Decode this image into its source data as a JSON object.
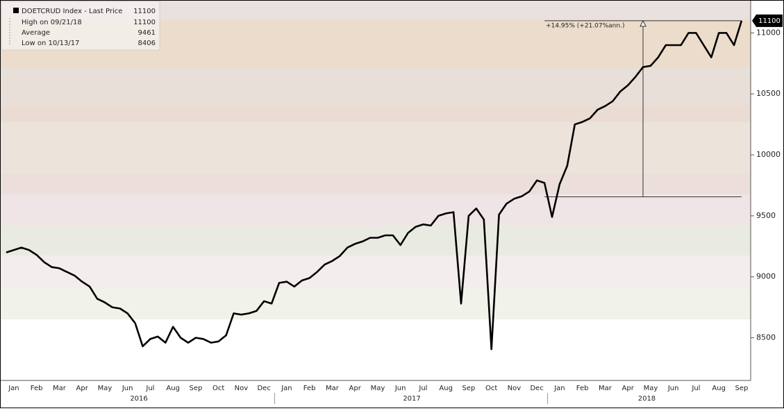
{
  "chart_data": {
    "type": "line",
    "series": [
      {
        "name": "DOETCRUD Index - Last Price",
        "color": "#000000",
        "values": [
          9200,
          9220,
          9240,
          9220,
          9180,
          9120,
          9080,
          9070,
          9040,
          9010,
          8960,
          8920,
          8820,
          8790,
          8750,
          8740,
          8700,
          8620,
          8430,
          8490,
          8510,
          8460,
          8590,
          8500,
          8460,
          8500,
          8490,
          8460,
          8470,
          8520,
          8700,
          8690,
          8700,
          8720,
          8800,
          8780,
          8950,
          8960,
          8920,
          8970,
          8990,
          9040,
          9100,
          9130,
          9170,
          9240,
          9270,
          9290,
          9320,
          9320,
          9340,
          9340,
          9260,
          9360,
          9410,
          9430,
          9420,
          9500,
          9520,
          9530,
          8780,
          9500,
          9560,
          9470,
          8406,
          9510,
          9600,
          9640,
          9660,
          9700,
          9790,
          9770,
          9490,
          9760,
          9910,
          10250,
          10270,
          10300,
          10370,
          10400,
          10440,
          10520,
          10570,
          10640,
          10720,
          10730,
          10800,
          10900,
          10900,
          10900,
          11000,
          11000,
          10900,
          10800,
          11000,
          11000,
          10900,
          11100
        ]
      }
    ],
    "categories": [
      null,
      "Jan",
      null,
      null,
      "Feb",
      null,
      null,
      "Mar",
      null,
      null,
      "Apr",
      null,
      null,
      "May",
      null,
      null,
      "Jun",
      null,
      null,
      "Jul",
      null,
      null,
      "Aug",
      null,
      null,
      "Sep",
      null,
      null,
      "Oct",
      null,
      null,
      "Nov",
      null,
      null,
      "Dec",
      null,
      null,
      "Jan",
      null,
      null,
      "Feb",
      null,
      null,
      "Mar",
      null,
      null,
      "Apr",
      null,
      null,
      "May",
      null,
      null,
      "Jun",
      null,
      null,
      "Jul",
      null,
      null,
      "Aug",
      null,
      null,
      "Sep",
      null,
      null,
      "Oct",
      null,
      null,
      "Nov",
      null,
      null,
      "Dec",
      null,
      null,
      "Jan",
      null,
      null,
      "Feb",
      null,
      null,
      "Mar",
      null,
      null,
      "Apr",
      null,
      null,
      "May",
      null,
      null,
      "Jun",
      null,
      null,
      "Jul",
      null,
      null,
      "Aug",
      null,
      null,
      "Sep"
    ],
    "years": [
      "2016",
      "2017",
      "2018"
    ],
    "ylim": [
      8150,
      11270
    ],
    "yticks": [
      8500,
      9000,
      9500,
      10000,
      10500,
      11000
    ],
    "stats": [
      {
        "label": "High on 09/21/18",
        "value": 11100
      },
      {
        "label": "Average",
        "value": 9461
      },
      {
        "label": "Low on 10/13/17",
        "value": 8406
      }
    ],
    "measure": {
      "label": "+14.95% (+21.07%ann.)",
      "from": 9656,
      "to": 11100
    }
  }
}
